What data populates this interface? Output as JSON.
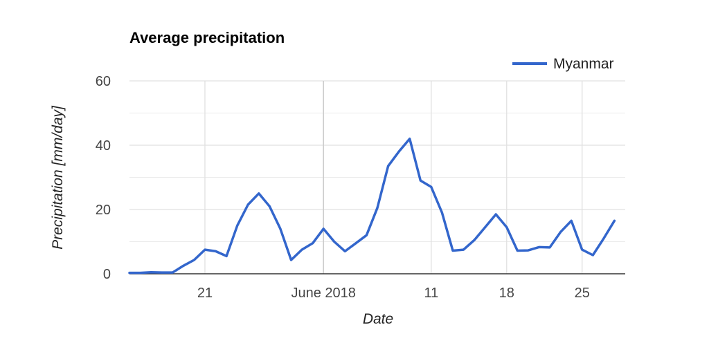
{
  "colors": {
    "series": "#3366cc",
    "grid": "#e0e0e0",
    "minor_grid": "#ebebeb",
    "baseline": "#333333",
    "month_line": "#cccccc"
  },
  "chart_data": {
    "type": "line",
    "title": "Average precipitation",
    "xlabel": "Date",
    "ylabel": "Precipitation [mm/day]",
    "ylim": [
      0,
      60
    ],
    "xlim": [
      "2018-05-14",
      "2018-06-29"
    ],
    "y_ticks": [
      0,
      20,
      40,
      60
    ],
    "x_ticks": [
      {
        "date": "2018-05-21",
        "label": "21"
      },
      {
        "date": "2018-06-01",
        "label": "June 2018"
      },
      {
        "date": "2018-06-11",
        "label": "11"
      },
      {
        "date": "2018-06-18",
        "label": "18"
      },
      {
        "date": "2018-06-25",
        "label": "25"
      }
    ],
    "grid": true,
    "legend": "top-right",
    "series": [
      {
        "name": "Myanmar",
        "color": "#3366cc",
        "points": [
          [
            "2018-05-14",
            0.3
          ],
          [
            "2018-05-15",
            0.3
          ],
          [
            "2018-05-16",
            0.5
          ],
          [
            "2018-05-17",
            0.4
          ],
          [
            "2018-05-18",
            0.4
          ],
          [
            "2018-05-19",
            2.5
          ],
          [
            "2018-05-20",
            4.3
          ],
          [
            "2018-05-21",
            7.5
          ],
          [
            "2018-05-22",
            7.0
          ],
          [
            "2018-05-23",
            5.5
          ],
          [
            "2018-05-24",
            15.0
          ],
          [
            "2018-05-25",
            21.5
          ],
          [
            "2018-05-26",
            25.0
          ],
          [
            "2018-05-27",
            21.0
          ],
          [
            "2018-05-28",
            14.0
          ],
          [
            "2018-05-29",
            4.3
          ],
          [
            "2018-05-30",
            7.5
          ],
          [
            "2018-05-31",
            9.5
          ],
          [
            "2018-06-01",
            14.0
          ],
          [
            "2018-06-02",
            10.0
          ],
          [
            "2018-06-03",
            7.0
          ],
          [
            "2018-06-04",
            9.5
          ],
          [
            "2018-06-05",
            12.0
          ],
          [
            "2018-06-06",
            20.5
          ],
          [
            "2018-06-07",
            33.5
          ],
          [
            "2018-06-08",
            38.0
          ],
          [
            "2018-06-09",
            42.0
          ],
          [
            "2018-06-10",
            29.0
          ],
          [
            "2018-06-11",
            27.0
          ],
          [
            "2018-06-12",
            19.0
          ],
          [
            "2018-06-13",
            7.2
          ],
          [
            "2018-06-14",
            7.5
          ],
          [
            "2018-06-15",
            10.5
          ],
          [
            "2018-06-16",
            14.5
          ],
          [
            "2018-06-17",
            18.5
          ],
          [
            "2018-06-18",
            14.5
          ],
          [
            "2018-06-19",
            7.2
          ],
          [
            "2018-06-20",
            7.3
          ],
          [
            "2018-06-21",
            8.3
          ],
          [
            "2018-06-22",
            8.2
          ],
          [
            "2018-06-23",
            13.0
          ],
          [
            "2018-06-24",
            16.5
          ],
          [
            "2018-06-25",
            7.5
          ],
          [
            "2018-06-26",
            5.8
          ],
          [
            "2018-06-27",
            11.0
          ],
          [
            "2018-06-28",
            16.5
          ]
        ]
      }
    ]
  }
}
